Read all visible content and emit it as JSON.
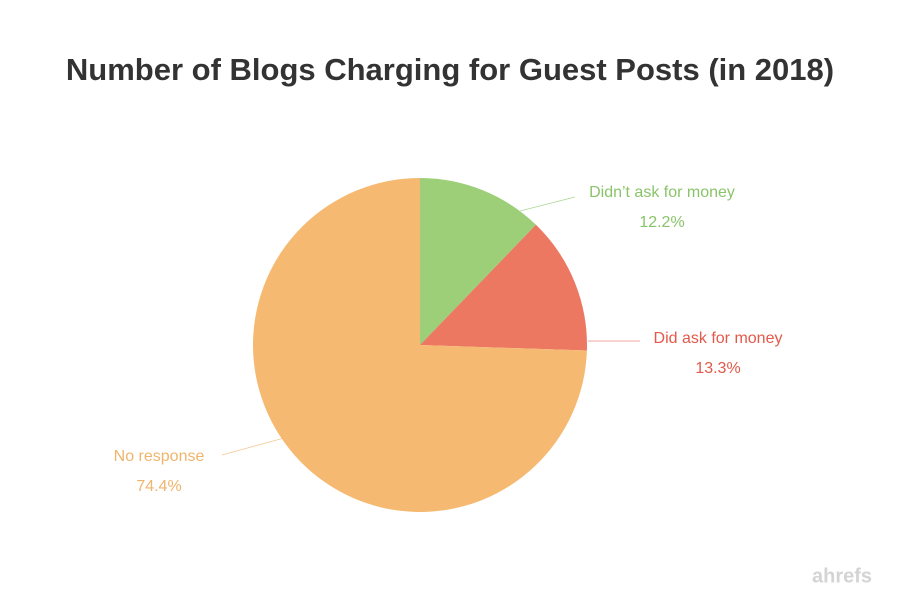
{
  "chart_data": {
    "type": "pie",
    "title": "Number of Blogs Charging for Guest Posts (in 2018)",
    "categories": [
      "Didn’t ask for money",
      "Did ask for money",
      "No response"
    ],
    "values": [
      12.2,
      13.3,
      74.4
    ],
    "value_labels": [
      "12.2%",
      "13.3%",
      "74.4%"
    ],
    "colors": [
      "#9ccf78",
      "#ec7862",
      "#f5b971"
    ],
    "label_colors": [
      "#8ac46a",
      "#e2594a",
      "#f0b56c"
    ],
    "watermark": "ahrefs"
  }
}
